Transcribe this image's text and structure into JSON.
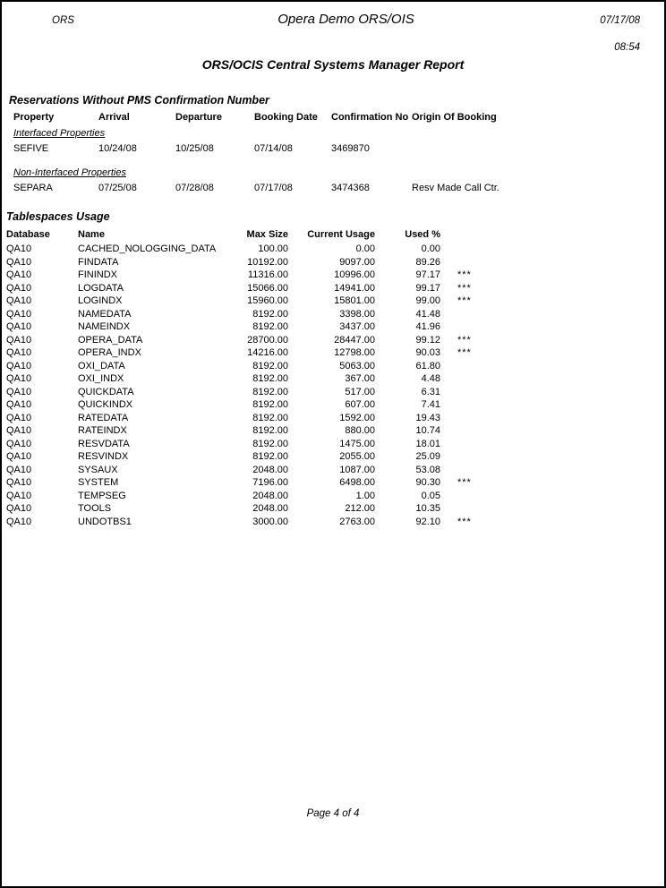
{
  "header": {
    "app_label": "ORS",
    "title": "Opera Demo ORS/OIS",
    "date": "07/17/08",
    "time": "08:54",
    "report_title": "ORS/OCIS Central Systems Manager Report"
  },
  "reservations": {
    "section_title": "Reservations Without PMS Confirmation Number",
    "columns": {
      "property": "Property",
      "arrival": "Arrival",
      "departure": "Departure",
      "booking_date": "Booking Date",
      "confirmation_no": "Confirmation No",
      "origin": "Origin Of Booking"
    },
    "groups": [
      {
        "label": "Interfaced Properties",
        "rows": [
          {
            "property": "SEFIVE",
            "arrival": "10/24/08",
            "departure": "10/25/08",
            "booking_date": "07/14/08",
            "confirmation_no": "3469870",
            "origin": ""
          }
        ]
      },
      {
        "label": "Non-Interfaced Properties",
        "rows": [
          {
            "property": "SEPARA",
            "arrival": "07/25/08",
            "departure": "07/28/08",
            "booking_date": "07/17/08",
            "confirmation_no": "3474368",
            "origin": "Resv Made Call Ctr."
          }
        ]
      }
    ]
  },
  "tablespaces": {
    "section_title": "Tablespaces Usage",
    "columns": {
      "database": "Database",
      "name": "Name",
      "max_size": "Max Size",
      "current_usage": "Current Usage",
      "used_pct": "Used %"
    },
    "rows": [
      [
        "QA10",
        "CACHED_NOLOGGING_DATA",
        "100.00",
        "0.00",
        "0.00",
        ""
      ],
      [
        "QA10",
        "FINDATA",
        "10192.00",
        "9097.00",
        "89.26",
        ""
      ],
      [
        "QA10",
        "FININDX",
        "11316.00",
        "10996.00",
        "97.17",
        "***"
      ],
      [
        "QA10",
        "LOGDATA",
        "15066.00",
        "14941.00",
        "99.17",
        "***"
      ],
      [
        "QA10",
        "LOGINDX",
        "15960.00",
        "15801.00",
        "99.00",
        "***"
      ],
      [
        "QA10",
        "NAMEDATA",
        "8192.00",
        "3398.00",
        "41.48",
        ""
      ],
      [
        "QA10",
        "NAMEINDX",
        "8192.00",
        "3437.00",
        "41.96",
        ""
      ],
      [
        "QA10",
        "OPERA_DATA",
        "28700.00",
        "28447.00",
        "99.12",
        "***"
      ],
      [
        "QA10",
        "OPERA_INDX",
        "14216.00",
        "12798.00",
        "90.03",
        "***"
      ],
      [
        "QA10",
        "OXI_DATA",
        "8192.00",
        "5063.00",
        "61.80",
        ""
      ],
      [
        "QA10",
        "OXI_INDX",
        "8192.00",
        "367.00",
        "4.48",
        ""
      ],
      [
        "QA10",
        "QUICKDATA",
        "8192.00",
        "517.00",
        "6.31",
        ""
      ],
      [
        "QA10",
        "QUICKINDX",
        "8192.00",
        "607.00",
        "7.41",
        ""
      ],
      [
        "QA10",
        "RATEDATA",
        "8192.00",
        "1592.00",
        "19.43",
        ""
      ],
      [
        "QA10",
        "RATEINDX",
        "8192.00",
        "880.00",
        "10.74",
        ""
      ],
      [
        "QA10",
        "RESVDATA",
        "8192.00",
        "1475.00",
        "18.01",
        ""
      ],
      [
        "QA10",
        "RESVINDX",
        "8192.00",
        "2055.00",
        "25.09",
        ""
      ],
      [
        "QA10",
        "SYSAUX",
        "2048.00",
        "1087.00",
        "53.08",
        ""
      ],
      [
        "QA10",
        "SYSTEM",
        "7196.00",
        "6498.00",
        "90.30",
        "***"
      ],
      [
        "QA10",
        "TEMPSEG",
        "2048.00",
        "1.00",
        "0.05",
        ""
      ],
      [
        "QA10",
        "TOOLS",
        "2048.00",
        "212.00",
        "10.35",
        ""
      ],
      [
        "QA10",
        "UNDOTBS1",
        "3000.00",
        "2763.00",
        "92.10",
        "***"
      ]
    ]
  },
  "footer": {
    "page_label": "Page 4 of 4"
  }
}
